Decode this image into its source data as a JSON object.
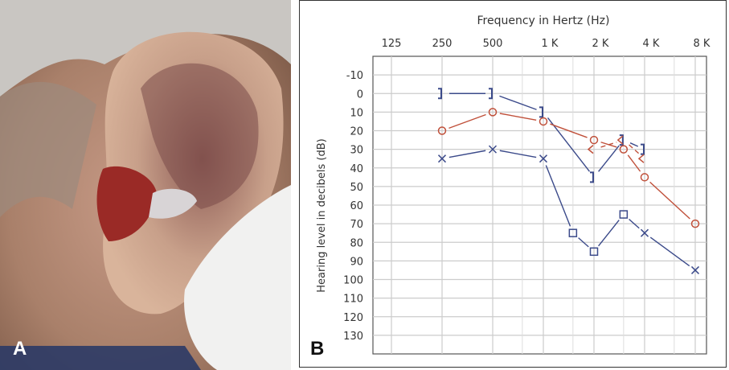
{
  "panels": {
    "a_label": "A",
    "b_label": "B"
  },
  "chart_data": {
    "type": "line",
    "title": "Frequency in Hertz (Hz)",
    "xlabel": "Frequency in Hertz (Hz)",
    "ylabel": "Hearing level in decibels (dB)",
    "x_scale": "log2",
    "x_ticks": [
      125,
      250,
      500,
      1000,
      2000,
      4000,
      8000
    ],
    "x_tick_labels": [
      "125",
      "250",
      "500",
      "1 K",
      "2 K",
      "4 K",
      "8 K"
    ],
    "x_minor_grid": [
      750,
      1500,
      3000,
      6000
    ],
    "y_ticks": [
      -10,
      0,
      10,
      20,
      30,
      40,
      50,
      60,
      70,
      80,
      90,
      100,
      110,
      120,
      130
    ],
    "ylim": [
      -20,
      140
    ],
    "y_inverted": true,
    "grid": true,
    "colors": {
      "left": "#3b4a8a",
      "right": "#c0503a"
    },
    "series": [
      {
        "ear": "left",
        "kind": "air-conduction",
        "color": "#3b4a8a",
        "dashed": false,
        "points": [
          {
            "x": 250,
            "y": 35,
            "marker": "x"
          },
          {
            "x": 500,
            "y": 30,
            "marker": "x"
          },
          {
            "x": 1000,
            "y": 35,
            "marker": "x"
          },
          {
            "x": 1500,
            "y": 75,
            "marker": "square"
          },
          {
            "x": 2000,
            "y": 85,
            "marker": "square"
          },
          {
            "x": 3000,
            "y": 65,
            "marker": "square"
          },
          {
            "x": 4000,
            "y": 75,
            "marker": "x"
          },
          {
            "x": 8000,
            "y": 95,
            "marker": "x"
          }
        ]
      },
      {
        "ear": "left",
        "kind": "bone-conduction",
        "color": "#3b4a8a",
        "dashed": false,
        "points": [
          {
            "x": 250,
            "y": 0,
            "marker": "bracket-right"
          },
          {
            "x": 500,
            "y": 0,
            "marker": "bracket-right"
          },
          {
            "x": 1000,
            "y": 10,
            "marker": "bracket-right"
          },
          {
            "x": 2000,
            "y": 45,
            "marker": "bracket-right"
          },
          {
            "x": 3000,
            "y": 25,
            "marker": "bracket-right"
          },
          {
            "x": 4000,
            "y": 30,
            "marker": "bracket-right"
          }
        ]
      },
      {
        "ear": "right",
        "kind": "air-conduction",
        "color": "#c0503a",
        "dashed": false,
        "points": [
          {
            "x": 250,
            "y": 20,
            "marker": "circle"
          },
          {
            "x": 500,
            "y": 10,
            "marker": "circle"
          },
          {
            "x": 1000,
            "y": 15,
            "marker": "circle"
          },
          {
            "x": 2000,
            "y": 25,
            "marker": "circle"
          },
          {
            "x": 3000,
            "y": 30,
            "marker": "circle"
          },
          {
            "x": 4000,
            "y": 45,
            "marker": "circle"
          },
          {
            "x": 8000,
            "y": 70,
            "marker": "circle"
          }
        ]
      },
      {
        "ear": "right",
        "kind": "bone-conduction",
        "color": "#c0503a",
        "dashed": true,
        "points": [
          {
            "x": 2000,
            "y": 30,
            "marker": "angle-left"
          },
          {
            "x": 3000,
            "y": 25,
            "marker": "angle-left"
          },
          {
            "x": 4000,
            "y": 35,
            "marker": "angle-left"
          }
        ]
      }
    ]
  }
}
